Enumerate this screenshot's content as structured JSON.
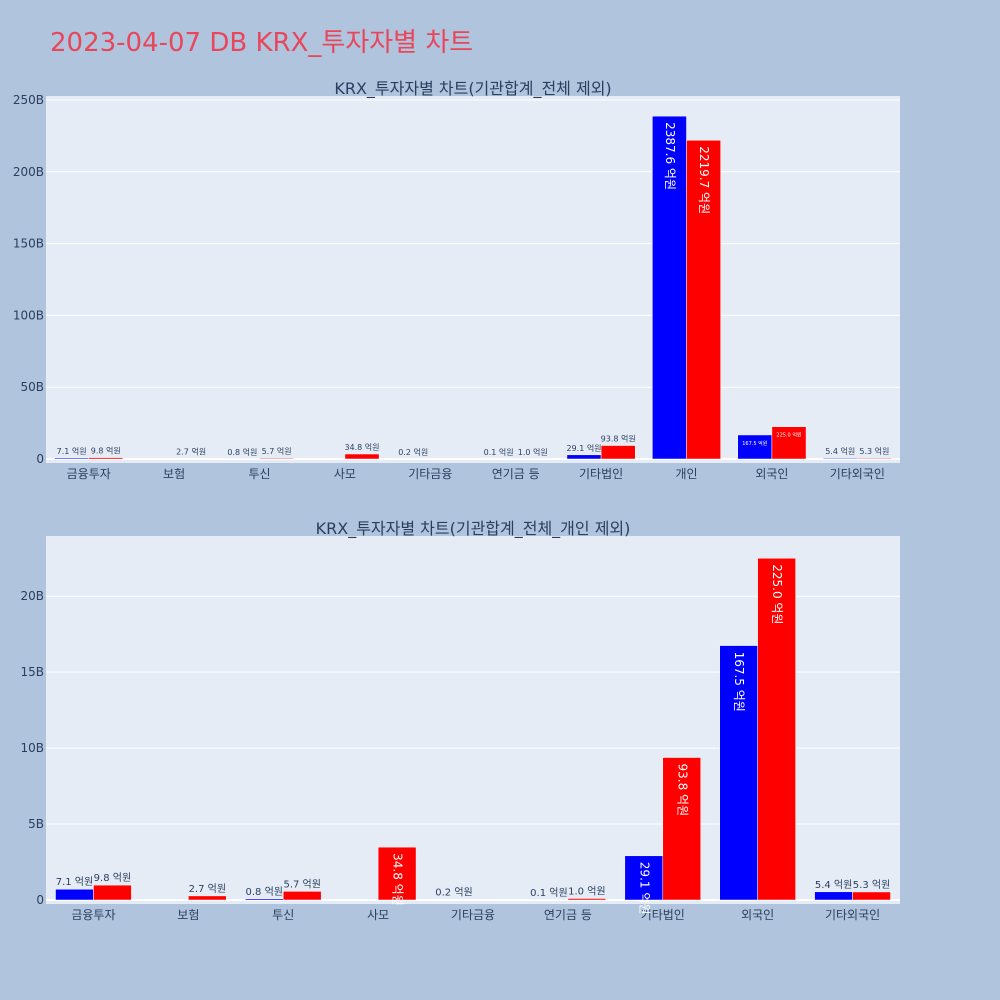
{
  "page_title": "2023-04-07 DB KRX_투자자별 차트",
  "colors": {
    "background": "#b0c4de",
    "plot_bg": "#e5ecf6",
    "buy": "#0000ff",
    "sell": "#ff0000",
    "title": "#e8475b"
  },
  "chart_data": [
    {
      "type": "bar",
      "title": "KRX_투자자별 차트(기관합계_전체 제외)",
      "xlabel": "",
      "ylabel": "",
      "categories": [
        "금융투자",
        "보험",
        "투신",
        "사모",
        "기타금융",
        "연기금 등",
        "기타법인",
        "개인",
        "외국인",
        "기타외국인"
      ],
      "yticks": [
        "0",
        "50B",
        "100B",
        "150B",
        "200B",
        "250B"
      ],
      "ylim": [
        0,
        250
      ],
      "series": [
        {
          "color": "#0000ff",
          "values": [
            0.71,
            0,
            0.08,
            0,
            0.02,
            0.01,
            2.91,
            238.76,
            16.75,
            0.54
          ],
          "labels": [
            "7.1 억원",
            "",
            "0.8 억원",
            "",
            "0.2 억원",
            "0.1 억원",
            "29.1 억원",
            "2387.6 억원",
            "167.5 억원",
            "5.4 억원"
          ]
        },
        {
          "color": "#ff0000",
          "values": [
            0.98,
            0.27,
            0.57,
            3.48,
            0,
            0.1,
            9.38,
            221.97,
            22.5,
            0.53
          ],
          "labels": [
            "9.8 억원",
            "2.7 억원",
            "5.7 억원",
            "34.8 억원",
            "",
            "1.0 억원",
            "93.8 억원",
            "2219.7 억원",
            "225.0 억원",
            "5.3 억원"
          ]
        }
      ]
    },
    {
      "type": "bar",
      "title": "KRX_투자자별 차트(기관합계_전체_개인 제외)",
      "xlabel": "",
      "ylabel": "",
      "categories": [
        "금융투자",
        "보험",
        "투신",
        "사모",
        "기타금융",
        "연기금 등",
        "기타법인",
        "외국인",
        "기타외국인"
      ],
      "yticks": [
        "0",
        "5B",
        "10B",
        "15B",
        "20B"
      ],
      "ylim": [
        0,
        23.7
      ],
      "series": [
        {
          "color": "#0000ff",
          "values": [
            0.71,
            0,
            0.08,
            0,
            0.02,
            0.01,
            2.91,
            16.75,
            0.54
          ],
          "labels": [
            "7.1 억원",
            "",
            "0.8 억원",
            "",
            "0.2 억원",
            "0.1 억원",
            "29.1 억원",
            "167.5 억원",
            "5.4 억원"
          ]
        },
        {
          "color": "#ff0000",
          "values": [
            0.98,
            0.27,
            0.57,
            3.48,
            0,
            0.1,
            9.38,
            22.5,
            0.53
          ],
          "labels": [
            "9.8 억원",
            "2.7 억원",
            "5.7 억원",
            "34.8 억원",
            "",
            "1.0 억원",
            "93.8 억원",
            "225.0 억원",
            "5.3 억원"
          ]
        }
      ]
    }
  ]
}
